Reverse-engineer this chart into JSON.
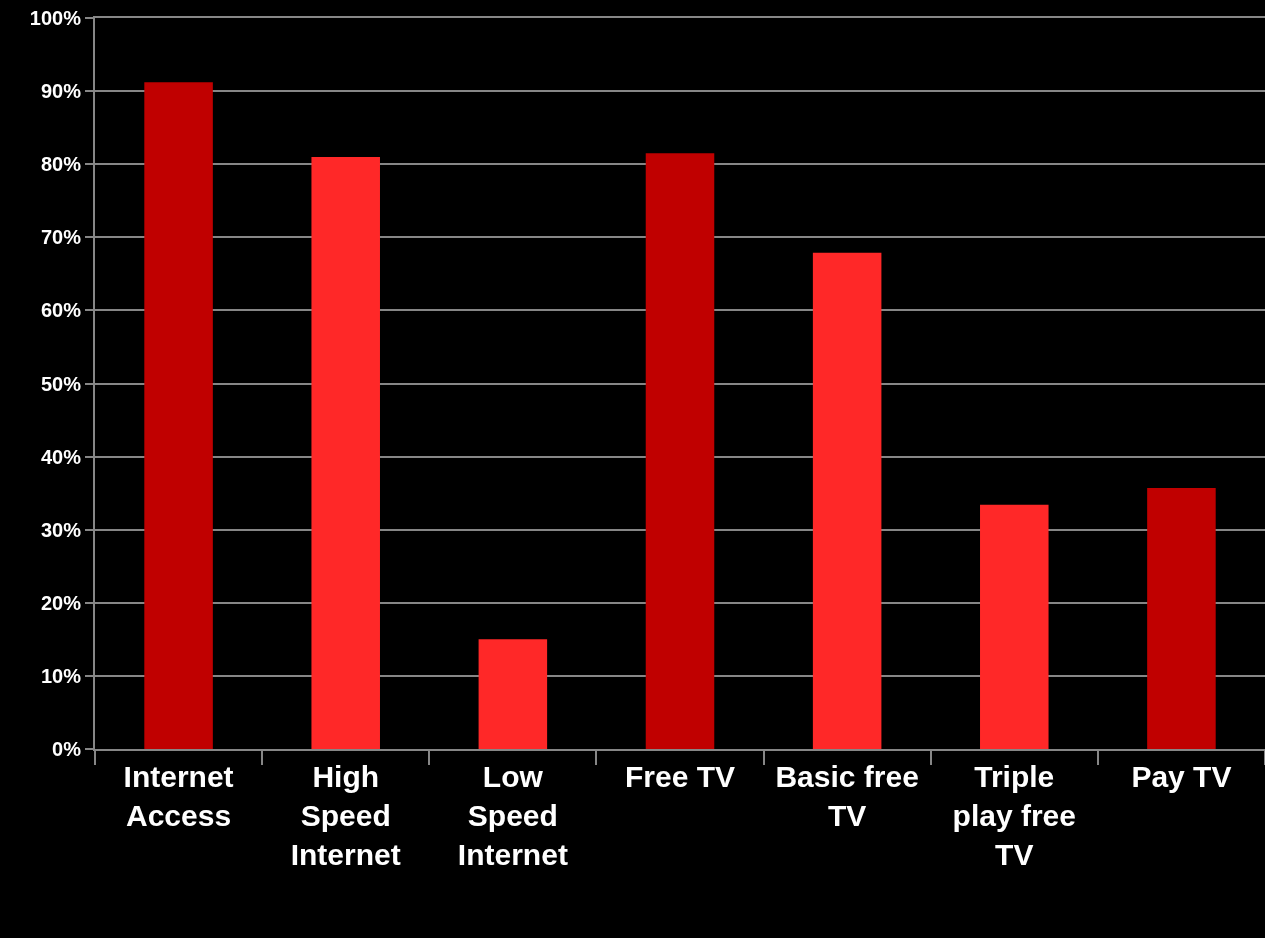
{
  "chart_data": {
    "type": "bar",
    "categories": [
      "Internet Access",
      "High Speed Internet",
      "Low Speed Internet",
      "Free TV",
      "Basic free TV",
      "Triple play free TV",
      "Pay TV"
    ],
    "values": [
      91.2,
      81.0,
      15.0,
      81.5,
      67.9,
      33.4,
      35.7
    ],
    "colors": [
      "#c00000",
      "#ff2828",
      "#ff2828",
      "#c00000",
      "#ff2828",
      "#ff2828",
      "#c00000"
    ],
    "ylim": [
      0,
      100
    ],
    "yticks": [
      {
        "value": 0,
        "label": "0%"
      },
      {
        "value": 10,
        "label": "10%"
      },
      {
        "value": 20,
        "label": "20%"
      },
      {
        "value": 30,
        "label": "30%"
      },
      {
        "value": 40,
        "label": "40%"
      },
      {
        "value": 50,
        "label": "50%"
      },
      {
        "value": 60,
        "label": "60%"
      },
      {
        "value": 70,
        "label": "70%"
      },
      {
        "value": 80,
        "label": "80%"
      },
      {
        "value": 90,
        "label": "90%"
      },
      {
        "value": 100,
        "label": "100%"
      }
    ],
    "grid": "y"
  }
}
